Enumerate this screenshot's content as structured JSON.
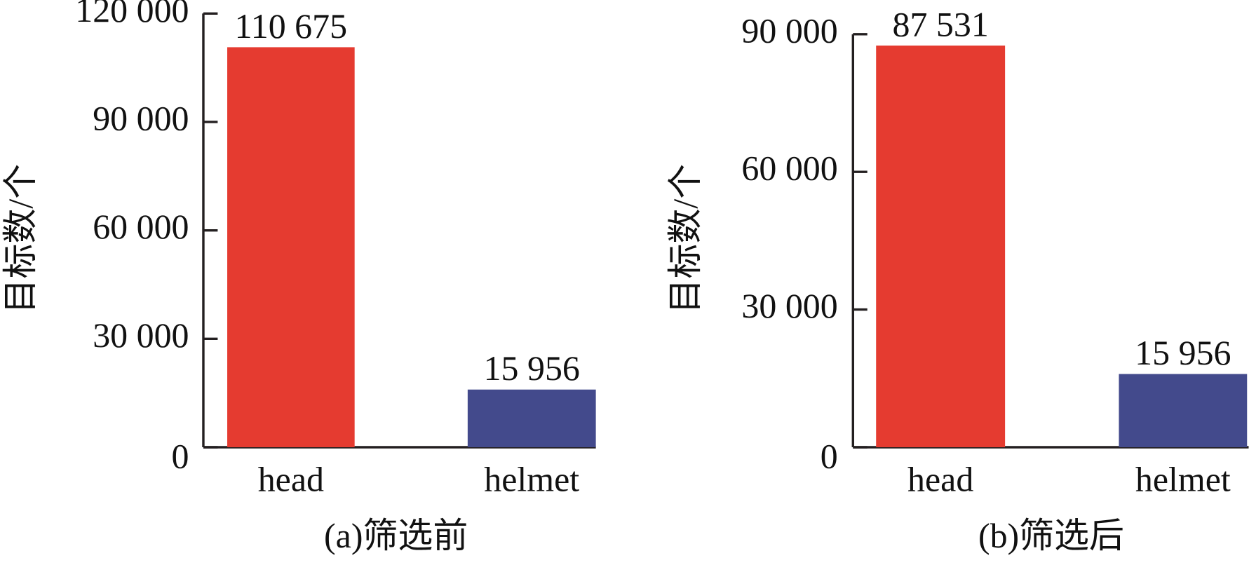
{
  "chart_data": [
    {
      "type": "bar",
      "ylabel": "目标数/个",
      "caption": "(a)筛选前",
      "categories": [
        "head",
        "helmet"
      ],
      "values": [
        110675,
        15956
      ],
      "value_labels": [
        "110 675",
        "15 956"
      ],
      "colors": [
        "#e53b30",
        "#434a8c"
      ],
      "ylim": [
        0,
        120000
      ],
      "yticks": [
        0,
        {
          "value": 30000,
          "label": "30 000"
        },
        {
          "value": 60000,
          "label": "60 000"
        },
        {
          "value": 90000,
          "label": "90 000"
        },
        {
          "value": 120000,
          "label": "120 000"
        }
      ]
    },
    {
      "type": "bar",
      "ylabel": "目标数/个",
      "caption": "(b)筛选后",
      "categories": [
        "head",
        "helmet"
      ],
      "values": [
        87531,
        15956
      ],
      "value_labels": [
        "87 531",
        "15 956"
      ],
      "colors": [
        "#e53b30",
        "#434a8c"
      ],
      "ylim": [
        0,
        90000
      ],
      "yticks": [
        0,
        {
          "value": 30000,
          "label": "30 000"
        },
        {
          "value": 60000,
          "label": "60 000"
        },
        {
          "value": 90000,
          "label": "90 000"
        }
      ]
    }
  ]
}
